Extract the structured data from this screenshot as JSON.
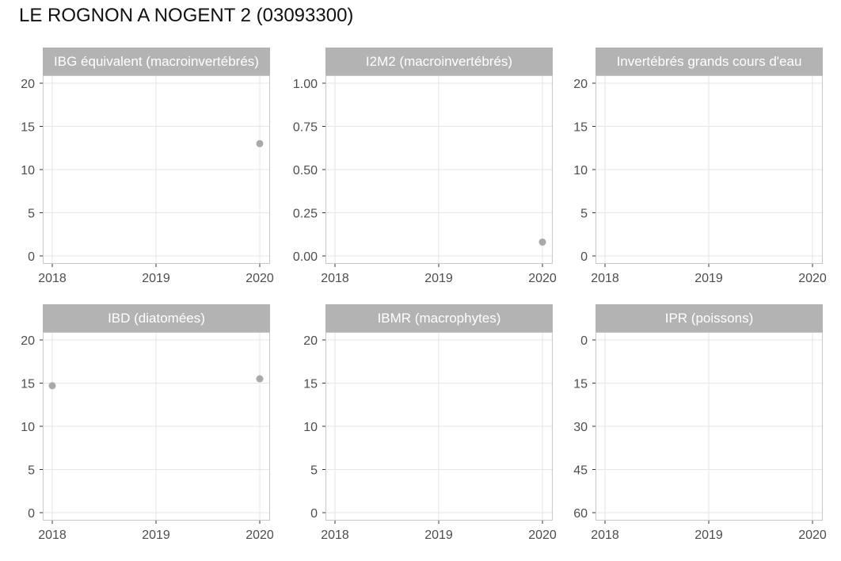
{
  "page": {
    "title": "LE ROGNON A NOGENT 2 (03093300)"
  },
  "colors": {
    "strip": "#b3b3b3",
    "strip_text": "#ffffff",
    "grid": "#e6e6e6",
    "frame": "#c7c7c7",
    "point": "#a9a9a9",
    "tick_text": "#4d4d4d"
  },
  "chart_data": [
    {
      "type": "scatter",
      "title": "IBG équivalent (macroinvertébrés)",
      "xlim": [
        2018,
        2020
      ],
      "x_ticks": [
        2018,
        2019,
        2020
      ],
      "x_tick_labels": [
        "2018",
        "2019",
        "2020"
      ],
      "ylim": [
        0,
        20
      ],
      "y_reversed": false,
      "y_ticks": [
        0,
        5,
        10,
        15,
        20
      ],
      "y_tick_labels": [
        "0",
        "5",
        "10",
        "15",
        "20"
      ],
      "grid": true,
      "points": [
        {
          "x": 2020,
          "y": 13
        }
      ]
    },
    {
      "type": "scatter",
      "title": "I2M2 (macroinvertébrés)",
      "xlim": [
        2018,
        2020
      ],
      "x_ticks": [
        2018,
        2019,
        2020
      ],
      "x_tick_labels": [
        "2018",
        "2019",
        "2020"
      ],
      "ylim": [
        0,
        1
      ],
      "y_reversed": false,
      "y_ticks": [
        0,
        0.25,
        0.5,
        0.75,
        1
      ],
      "y_tick_labels": [
        "0.00",
        "0.25",
        "0.50",
        "0.75",
        "1.00"
      ],
      "grid": true,
      "points": [
        {
          "x": 2020,
          "y": 0.08
        }
      ]
    },
    {
      "type": "scatter",
      "title": "Invertébrés grands cours d'eau",
      "xlim": [
        2018,
        2020
      ],
      "x_ticks": [
        2018,
        2019,
        2020
      ],
      "x_tick_labels": [
        "2018",
        "2019",
        "2020"
      ],
      "ylim": [
        0,
        20
      ],
      "y_reversed": false,
      "y_ticks": [
        0,
        5,
        10,
        15,
        20
      ],
      "y_tick_labels": [
        "0",
        "5",
        "10",
        "15",
        "20"
      ],
      "grid": true,
      "points": []
    },
    {
      "type": "scatter",
      "title": "IBD (diatomées)",
      "xlim": [
        2018,
        2020
      ],
      "x_ticks": [
        2018,
        2019,
        2020
      ],
      "x_tick_labels": [
        "2018",
        "2019",
        "2020"
      ],
      "ylim": [
        0,
        20
      ],
      "y_reversed": false,
      "y_ticks": [
        0,
        5,
        10,
        15,
        20
      ],
      "y_tick_labels": [
        "0",
        "5",
        "10",
        "15",
        "20"
      ],
      "grid": true,
      "points": [
        {
          "x": 2018,
          "y": 14.7
        },
        {
          "x": 2020,
          "y": 15.5
        }
      ]
    },
    {
      "type": "scatter",
      "title": "IBMR (macrophytes)",
      "xlim": [
        2018,
        2020
      ],
      "x_ticks": [
        2018,
        2019,
        2020
      ],
      "x_tick_labels": [
        "2018",
        "2019",
        "2020"
      ],
      "ylim": [
        0,
        20
      ],
      "y_reversed": false,
      "y_ticks": [
        0,
        5,
        10,
        15,
        20
      ],
      "y_tick_labels": [
        "0",
        "5",
        "10",
        "15",
        "20"
      ],
      "grid": true,
      "points": []
    },
    {
      "type": "scatter",
      "title": "IPR (poissons)",
      "xlim": [
        2018,
        2020
      ],
      "x_ticks": [
        2018,
        2019,
        2020
      ],
      "x_tick_labels": [
        "2018",
        "2019",
        "2020"
      ],
      "ylim": [
        0,
        60
      ],
      "y_reversed": true,
      "y_ticks": [
        0,
        15,
        30,
        45,
        60
      ],
      "y_tick_labels": [
        "0",
        "15",
        "30",
        "45",
        "60"
      ],
      "grid": true,
      "points": []
    }
  ]
}
